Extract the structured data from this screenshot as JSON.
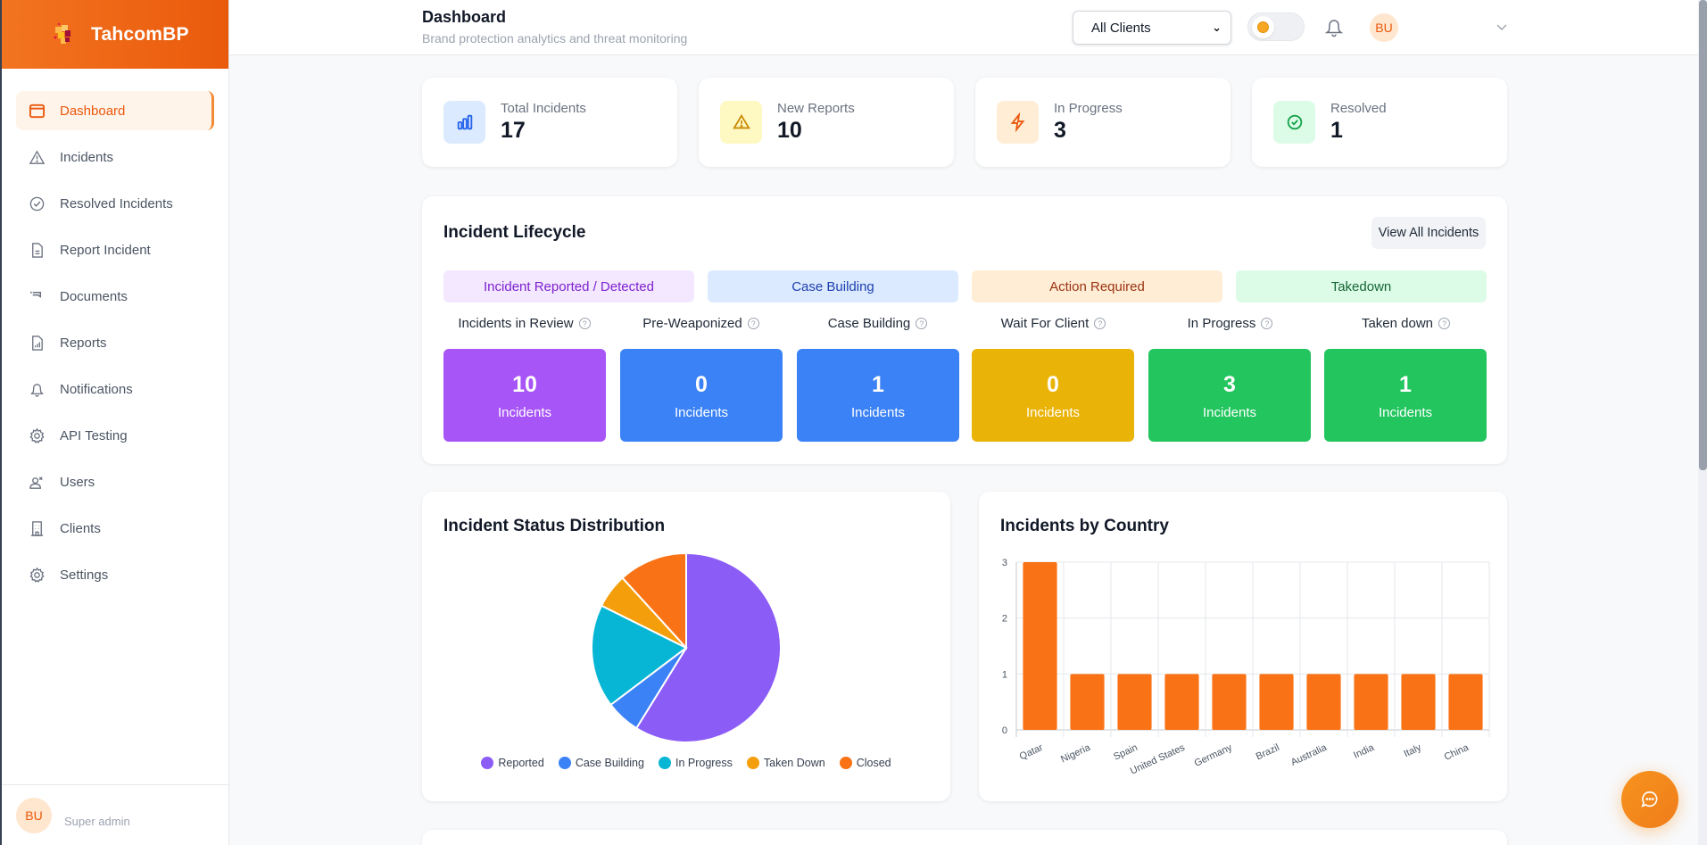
{
  "app": {
    "brand": "TahcomBP"
  },
  "sidebar": {
    "items": [
      {
        "label": "Dashboard",
        "icon": "dashboard-icon",
        "active": true
      },
      {
        "label": "Incidents",
        "icon": "alert-triangle-icon"
      },
      {
        "label": "Resolved Incidents",
        "icon": "check-circle-icon"
      },
      {
        "label": "Report Incident",
        "icon": "file-text-icon"
      },
      {
        "label": "Documents",
        "icon": "documents-icon"
      },
      {
        "label": "Reports",
        "icon": "report-chart-icon"
      },
      {
        "label": "Notifications",
        "icon": "bell-icon"
      },
      {
        "label": "API Testing",
        "icon": "gear-icon"
      },
      {
        "label": "Users",
        "icon": "users-icon"
      },
      {
        "label": "Clients",
        "icon": "building-icon"
      },
      {
        "label": "Settings",
        "icon": "settings-icon"
      }
    ],
    "user": {
      "initials": "BU",
      "role": "Super admin"
    }
  },
  "header": {
    "title": "Dashboard",
    "subtitle": "Brand protection analytics and threat monitoring",
    "client_filter": "All Clients",
    "user_initials": "BU"
  },
  "stats": [
    {
      "label": "Total Incidents",
      "value": "17",
      "icon": "bar-chart-icon",
      "color": "#2563eb",
      "bg": "#dbeafe"
    },
    {
      "label": "New Reports",
      "value": "10",
      "icon": "warning-icon",
      "color": "#ca8a04",
      "bg": "#fef9c3"
    },
    {
      "label": "In Progress",
      "value": "3",
      "icon": "lightning-icon",
      "color": "#ea580c",
      "bg": "#ffedd5"
    },
    {
      "label": "Resolved",
      "value": "1",
      "icon": "check-circle-icon",
      "color": "#16a34a",
      "bg": "#dcfce7"
    }
  ],
  "lifecycle": {
    "title": "Incident Lifecycle",
    "view_all_label": "View All Incidents",
    "phases": [
      {
        "label": "Incident Reported / Detected",
        "bg": "#f3e8ff",
        "color": "#7e22ce"
      },
      {
        "label": "Case Building",
        "bg": "#dbeafe",
        "color": "#1e40af"
      },
      {
        "label": "Action Required",
        "bg": "#ffedd5",
        "color": "#9a3412"
      },
      {
        "label": "Takedown",
        "bg": "#dcfce7",
        "color": "#166534"
      }
    ],
    "stages": [
      {
        "label": "Incidents in Review",
        "count": "10",
        "unit": "Incidents",
        "color": "#a855f7"
      },
      {
        "label": "Pre-Weaponized",
        "count": "0",
        "unit": "Incidents",
        "color": "#3b82f6"
      },
      {
        "label": "Case Building",
        "count": "1",
        "unit": "Incidents",
        "color": "#3b82f6"
      },
      {
        "label": "Wait For Client",
        "count": "0",
        "unit": "Incidents",
        "color": "#eab308"
      },
      {
        "label": "In Progress",
        "count": "3",
        "unit": "Incidents",
        "color": "#22c55e"
      },
      {
        "label": "Taken down",
        "count": "1",
        "unit": "Incidents",
        "color": "#22c55e"
      }
    ]
  },
  "chart_data": [
    {
      "type": "pie",
      "title": "Incident Status Distribution",
      "categories": [
        "Reported",
        "Case Building",
        "In Progress",
        "Taken Down",
        "Closed"
      ],
      "values": [
        10,
        1,
        3,
        1,
        2
      ],
      "colors": [
        "#8b5cf6",
        "#3b82f6",
        "#06b6d4",
        "#f59e0b",
        "#f97316"
      ],
      "legend": "bottom"
    },
    {
      "type": "bar",
      "title": "Incidents by Country",
      "categories": [
        "Qatar",
        "Nigeria",
        "Spain",
        "United States",
        "Germany",
        "Brazil",
        "Australia",
        "India",
        "Italy",
        "China"
      ],
      "values": [
        3,
        1,
        1,
        1,
        1,
        1,
        1,
        1,
        1,
        1
      ],
      "yticks": [
        0,
        1,
        2,
        3
      ],
      "ylim": [
        0,
        3
      ],
      "grid": true,
      "color": "#f97316",
      "xlabel": "",
      "ylabel": ""
    }
  ]
}
